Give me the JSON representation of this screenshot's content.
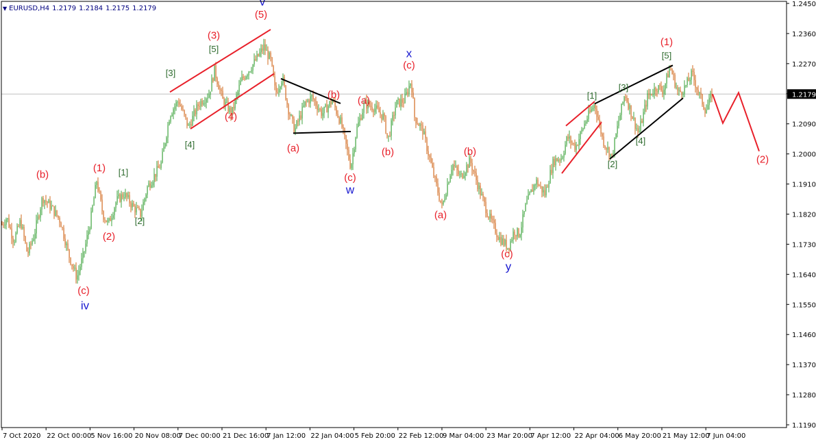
{
  "header": {
    "symbol": "EURUSD,H4",
    "open": "1.2179",
    "high": "1.2184",
    "low": "1.2175",
    "close": "1.2179"
  },
  "colors": {
    "up": "#3ca33c",
    "down": "#d2691e",
    "red": "#e8202a",
    "green": "#2e6b2e",
    "blue": "#1a1ad0",
    "black": "#000000",
    "axis": "#000000",
    "priceLine": "#c0c0c0",
    "priceLabelBg": "#000000"
  },
  "chart_data": {
    "type": "candlestick",
    "title": "",
    "ylim": [
      1.119,
      1.245
    ],
    "yticks": [
      "1.2450",
      "1.2360",
      "1.2270",
      "1.2180",
      "1.2090",
      "1.2000",
      "1.1910",
      "1.1820",
      "1.1730",
      "1.1640",
      "1.1550",
      "1.1460",
      "1.1370",
      "1.1280",
      "1.1190"
    ],
    "current_price": "1.2179",
    "xticks": [
      "7 Oct 2020",
      "22 Oct 00:00",
      "5 Nov 16:00",
      "20 Nov 08:00",
      "7 Dec 00:00",
      "21 Dec 16:00",
      "7 Jan 12:00",
      "22 Jan 04:00",
      "5 Feb 20:00",
      "22 Feb 12:00",
      "9 Mar 04:00",
      "23 Mar 20:00",
      "7 Apr 12:00",
      "22 Apr 04:00",
      "6 May 20:00",
      "21 May 12:00",
      "7 Jun 04:00"
    ],
    "price_path": [
      [
        0,
        1.178
      ],
      [
        10,
        1.181
      ],
      [
        20,
        1.174
      ],
      [
        30,
        1.18
      ],
      [
        40,
        1.17
      ],
      [
        50,
        1.176
      ],
      [
        62,
        1.187
      ],
      [
        75,
        1.184
      ],
      [
        88,
        1.18
      ],
      [
        100,
        1.17
      ],
      [
        112,
        1.163
      ],
      [
        122,
        1.17
      ],
      [
        132,
        1.18
      ],
      [
        141,
        1.192
      ],
      [
        150,
        1.182
      ],
      [
        158,
        1.179
      ],
      [
        170,
        1.186
      ],
      [
        181,
        1.188
      ],
      [
        195,
        1.184
      ],
      [
        205,
        1.182
      ],
      [
        215,
        1.19
      ],
      [
        235,
        1.197
      ],
      [
        248,
        1.212
      ],
      [
        260,
        1.216
      ],
      [
        275,
        1.208
      ],
      [
        290,
        1.215
      ],
      [
        305,
        1.218
      ],
      [
        313,
        1.225
      ],
      [
        325,
        1.216
      ],
      [
        338,
        1.212
      ],
      [
        352,
        1.222
      ],
      [
        370,
        1.227
      ],
      [
        385,
        1.232
      ],
      [
        395,
        1.228
      ],
      [
        402,
        1.218
      ],
      [
        412,
        1.223
      ],
      [
        420,
        1.214
      ],
      [
        430,
        1.207
      ],
      [
        445,
        1.215
      ],
      [
        455,
        1.217
      ],
      [
        470,
        1.212
      ],
      [
        485,
        1.216
      ],
      [
        498,
        1.209
      ],
      [
        512,
        1.196
      ],
      [
        520,
        1.207
      ],
      [
        532,
        1.215
      ],
      [
        545,
        1.214
      ],
      [
        560,
        1.211
      ],
      [
        566,
        1.204
      ],
      [
        578,
        1.215
      ],
      [
        590,
        1.216
      ],
      [
        600,
        1.222
      ],
      [
        605,
        1.211
      ],
      [
        617,
        1.207
      ],
      [
        630,
        1.196
      ],
      [
        645,
        1.184
      ],
      [
        660,
        1.197
      ],
      [
        672,
        1.193
      ],
      [
        686,
        1.198
      ],
      [
        700,
        1.189
      ],
      [
        712,
        1.182
      ],
      [
        728,
        1.175
      ],
      [
        742,
        1.172
      ],
      [
        750,
        1.177
      ],
      [
        758,
        1.176
      ],
      [
        768,
        1.185
      ],
      [
        782,
        1.192
      ],
      [
        795,
        1.188
      ],
      [
        808,
        1.198
      ],
      [
        820,
        1.199
      ],
      [
        828,
        1.205
      ],
      [
        840,
        1.202
      ],
      [
        855,
        1.21
      ],
      [
        868,
        1.215
      ],
      [
        880,
        1.204
      ],
      [
        893,
        1.199
      ],
      [
        903,
        1.21
      ],
      [
        912,
        1.218
      ],
      [
        925,
        1.21
      ],
      [
        932,
        1.206
      ],
      [
        945,
        1.217
      ],
      [
        958,
        1.22
      ],
      [
        968,
        1.219
      ],
      [
        978,
        1.226
      ],
      [
        990,
        1.218
      ],
      [
        1000,
        1.22
      ],
      [
        1010,
        1.224
      ],
      [
        1020,
        1.218
      ],
      [
        1030,
        1.213
      ],
      [
        1040,
        1.218
      ]
    ],
    "projection": [
      [
        1040,
        1.2179
      ],
      [
        1055,
        1.2092
      ],
      [
        1078,
        1.2183
      ],
      [
        1108,
        1.2008
      ]
    ],
    "channels": [
      {
        "color": "red",
        "points": [
          [
            248,
            1.2185
          ],
          [
            395,
            1.2372
          ]
        ]
      },
      {
        "color": "red",
        "points": [
          [
            278,
            1.2075
          ],
          [
            400,
            1.224
          ]
        ]
      },
      {
        "color": "black",
        "points": [
          [
            410,
            1.2225
          ],
          [
            497,
            1.2151
          ]
        ]
      },
      {
        "color": "black",
        "points": [
          [
            428,
            1.2062
          ],
          [
            512,
            1.2067
          ]
        ]
      },
      {
        "color": "red",
        "points": [
          [
            826,
            1.2084
          ],
          [
            868,
            1.2157
          ]
        ]
      },
      {
        "color": "red",
        "points": [
          [
            820,
            1.1942
          ],
          [
            878,
            1.2095
          ]
        ]
      },
      {
        "color": "black",
        "points": [
          [
            868,
            1.215
          ],
          [
            982,
            1.2265
          ]
        ]
      },
      {
        "color": "black",
        "points": [
          [
            890,
            1.1985
          ],
          [
            997,
            1.2167
          ]
        ]
      }
    ],
    "labels": [
      {
        "text": "(b)",
        "x": 62,
        "y": 1.1929,
        "color": "red"
      },
      {
        "text": "(1)",
        "x": 145,
        "y": 1.1948,
        "color": "red"
      },
      {
        "text": "[1]",
        "x": 180,
        "y": 1.1936,
        "color": "green"
      },
      {
        "text": "(2)",
        "x": 159,
        "y": 1.1743,
        "color": "red"
      },
      {
        "text": "[2]",
        "x": 204,
        "y": 1.179,
        "color": "green"
      },
      {
        "text": "(c)",
        "x": 122,
        "y": 1.1581,
        "color": "red"
      },
      {
        "text": "iv",
        "x": 124,
        "y": 1.1535,
        "color": "blue"
      },
      {
        "text": "[3]",
        "x": 249,
        "y": 1.2233,
        "color": "green"
      },
      {
        "text": "[4]",
        "x": 277,
        "y": 1.2019,
        "color": "green"
      },
      {
        "text": "(3)",
        "x": 312,
        "y": 1.2345,
        "color": "red"
      },
      {
        "text": "[5]",
        "x": 312,
        "y": 1.2305,
        "color": "green"
      },
      {
        "text": "(4)",
        "x": 337,
        "y": 1.2102,
        "color": "red"
      },
      {
        "text": "(5)",
        "x": 381,
        "y": 1.2407,
        "color": "red"
      },
      {
        "text": "v",
        "x": 383,
        "y": 1.2444,
        "color": "blue"
      },
      {
        "text": "(a)",
        "x": 428,
        "y": 1.2007,
        "color": "red"
      },
      {
        "text": "(b)",
        "x": 487,
        "y": 1.2167,
        "color": "red"
      },
      {
        "text": "(c)",
        "x": 511,
        "y": 1.1919,
        "color": "red"
      },
      {
        "text": "w",
        "x": 511,
        "y": 1.1881,
        "color": "blue"
      },
      {
        "text": "(a)",
        "x": 531,
        "y": 1.215,
        "color": "red"
      },
      {
        "text": "(b)",
        "x": 566,
        "y": 1.1996,
        "color": "red"
      },
      {
        "text": "x",
        "x": 597,
        "y": 1.2289,
        "color": "blue"
      },
      {
        "text": "(c)",
        "x": 597,
        "y": 1.2255,
        "color": "red"
      },
      {
        "text": "(a)",
        "x": 643,
        "y": 1.1808,
        "color": "red"
      },
      {
        "text": "(b)",
        "x": 686,
        "y": 1.1997,
        "color": "red"
      },
      {
        "text": "(c)",
        "x": 740,
        "y": 1.1691,
        "color": "red"
      },
      {
        "text": "y",
        "x": 742,
        "y": 1.1652,
        "color": "blue"
      },
      {
        "text": "[1]",
        "x": 864,
        "y": 1.2165,
        "color": "green"
      },
      {
        "text": "[2]",
        "x": 894,
        "y": 1.196,
        "color": "green"
      },
      {
        "text": "[3]",
        "x": 910,
        "y": 1.219,
        "color": "green"
      },
      {
        "text": "[4]",
        "x": 935,
        "y": 1.203,
        "color": "green"
      },
      {
        "text": "(1)",
        "x": 973,
        "y": 1.2325,
        "color": "red"
      },
      {
        "text": "[5]",
        "x": 973,
        "y": 1.2285,
        "color": "green"
      },
      {
        "text": "(2)",
        "x": 1113,
        "y": 1.1974,
        "color": "red"
      }
    ]
  }
}
